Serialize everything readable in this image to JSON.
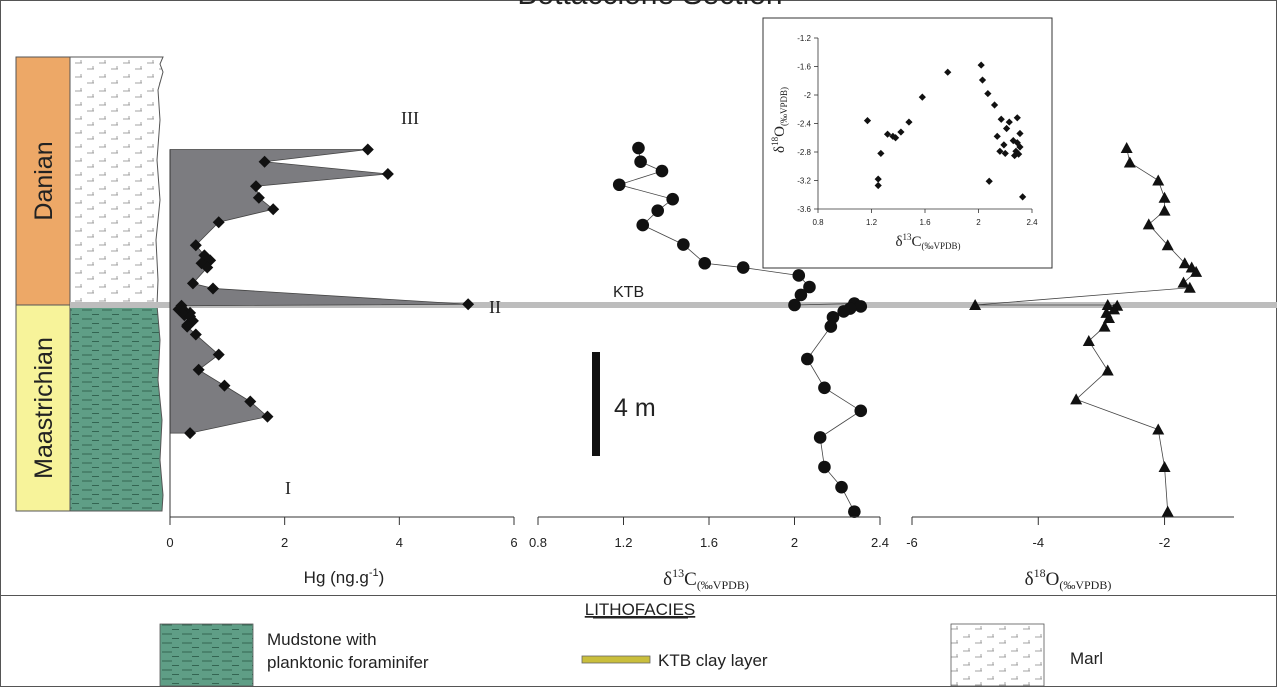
{
  "title": "Bottaccione Section",
  "stages": {
    "upper": "Danian",
    "lower": "Maastrichian"
  },
  "colors": {
    "danian": "#eda867",
    "maastrichian": "#f7f39a",
    "mudstone": "#5f9e86",
    "hg_fill": "#7c7c80",
    "ktb_line": "#bdbdbd",
    "ktb_clay": "#c9be3c"
  },
  "ktb_label": "KTB",
  "scale_bar": "4 m",
  "hg": {
    "xlabel": "Hg (ng.g",
    "xlabel_sup": "-1",
    "xlabel_end": ")",
    "ticks": [
      "0",
      "2",
      "4",
      "6"
    ],
    "peaks": [
      "I",
      "II",
      "III"
    ]
  },
  "d13c": {
    "xlabel_main": "δ",
    "xlabel_sup": "13",
    "xlabel_c": "C",
    "xlabel_sub": "(‰VPDB)",
    "ticks": [
      "0.8",
      "1.2",
      "1.6",
      "2",
      "2.4"
    ]
  },
  "d18o": {
    "xlabel_main": "δ",
    "xlabel_sup": "18",
    "xlabel_c": "O",
    "xlabel_sub": "(‰VPDB)",
    "ticks": [
      "-6",
      "-4",
      "-2"
    ]
  },
  "inset": {
    "xticks": [
      "0.8",
      "1.2",
      "1.6",
      "2",
      "2.4"
    ],
    "yticks": [
      "-1.2",
      "-1.6",
      "-2",
      "-2.4",
      "-2.8",
      "-3.2",
      "-3.6"
    ],
    "xlabel_main": "δ",
    "xlabel_sup": "13",
    "xlabel_c": "C",
    "xlabel_sub": "(‰VPDB)",
    "ylabel_main": "δ",
    "ylabel_sup": "18",
    "ylabel_c": "O",
    "ylabel_sub": "(‰VPDB)"
  },
  "legend": {
    "title": "LITHOFACIES",
    "mudstone_line1": "Mudstone with",
    "mudstone_line2": "planktonic foraminifer",
    "ktb_clay": "KTB clay layer",
    "marl": "Marl"
  },
  "chart_data": [
    {
      "type": "area",
      "name": "Hg",
      "x_axis": "Hg (ng.g-1)",
      "xlim": [
        0,
        6
      ],
      "y_unit": "relative stratigraphic position (m, KTB = 0)",
      "points": [
        {
          "y": 10.8,
          "x": 3.45
        },
        {
          "y": 9.95,
          "x": 1.65
        },
        {
          "y": 9.1,
          "x": 3.8
        },
        {
          "y": 8.25,
          "x": 1.5
        },
        {
          "y": 7.45,
          "x": 1.55
        },
        {
          "y": 6.65,
          "x": 1.8
        },
        {
          "y": 5.75,
          "x": 0.85
        },
        {
          "y": 4.15,
          "x": 0.45
        },
        {
          "y": 3.45,
          "x": 0.6
        },
        {
          "y": 3.1,
          "x": 0.7
        },
        {
          "y": 2.9,
          "x": 0.55
        },
        {
          "y": 2.6,
          "x": 0.65
        },
        {
          "y": 1.5,
          "x": 0.4
        },
        {
          "y": 1.15,
          "x": 0.75
        },
        {
          "y": 0.05,
          "x": 5.2
        },
        {
          "y": -0.05,
          "x": 0.2
        },
        {
          "y": -0.3,
          "x": 0.15
        },
        {
          "y": -0.4,
          "x": 0.25
        },
        {
          "y": -0.55,
          "x": 0.35
        },
        {
          "y": -0.7,
          "x": 0.25
        },
        {
          "y": -0.8,
          "x": 0.35
        },
        {
          "y": -1.1,
          "x": 0.4
        },
        {
          "y": -1.4,
          "x": 0.3
        },
        {
          "y": -1.5,
          "x": 0.3
        },
        {
          "y": -2.05,
          "x": 0.45
        },
        {
          "y": -3.45,
          "x": 0.85
        },
        {
          "y": -4.5,
          "x": 0.5
        },
        {
          "y": -5.6,
          "x": 0.95
        },
        {
          "y": -6.7,
          "x": 1.4
        },
        {
          "y": -7.75,
          "x": 1.7
        },
        {
          "y": -8.9,
          "x": 0.35
        }
      ]
    },
    {
      "type": "line",
      "name": "δ13C",
      "x_axis": "δ13C (‰VPDB)",
      "xlim": [
        0.8,
        2.4
      ],
      "points": [
        {
          "y": 10.9,
          "x": 1.27
        },
        {
          "y": 9.95,
          "x": 1.28
        },
        {
          "y": 9.3,
          "x": 1.38
        },
        {
          "y": 8.35,
          "x": 1.18
        },
        {
          "y": 7.35,
          "x": 1.43
        },
        {
          "y": 6.55,
          "x": 1.36
        },
        {
          "y": 5.55,
          "x": 1.29
        },
        {
          "y": 4.2,
          "x": 1.48
        },
        {
          "y": 2.9,
          "x": 1.58
        },
        {
          "y": 2.6,
          "x": 1.76
        },
        {
          "y": 2.05,
          "x": 2.02
        },
        {
          "y": 1.25,
          "x": 2.07
        },
        {
          "y": 0.7,
          "x": 2.03
        },
        {
          "y": 0.0,
          "x": 2.0
        },
        {
          "y": 0.1,
          "x": 2.28
        },
        {
          "y": -0.1,
          "x": 2.31
        },
        {
          "y": -0.25,
          "x": 2.26
        },
        {
          "y": -0.45,
          "x": 2.23
        },
        {
          "y": -0.85,
          "x": 2.18
        },
        {
          "y": -1.5,
          "x": 2.17
        },
        {
          "y": -3.75,
          "x": 2.06
        },
        {
          "y": -5.75,
          "x": 2.14
        },
        {
          "y": -7.35,
          "x": 2.31
        },
        {
          "y": -9.2,
          "x": 2.12
        },
        {
          "y": -11.25,
          "x": 2.14
        },
        {
          "y": -12.65,
          "x": 2.22
        },
        {
          "y": -14.35,
          "x": 2.28
        }
      ]
    },
    {
      "type": "line",
      "name": "δ18O",
      "x_axis": "δ18O (‰VPDB)",
      "xlim": [
        -6,
        -0.9
      ],
      "points": [
        {
          "y": 10.9,
          "x": -2.6
        },
        {
          "y": 9.9,
          "x": -2.55
        },
        {
          "y": 8.65,
          "x": -2.1
        },
        {
          "y": 7.45,
          "x": -2.0
        },
        {
          "y": 6.55,
          "x": -2.0
        },
        {
          "y": 5.6,
          "x": -2.25
        },
        {
          "y": 4.15,
          "x": -1.95
        },
        {
          "y": 2.9,
          "x": -1.68
        },
        {
          "y": 2.6,
          "x": -1.57
        },
        {
          "y": 2.3,
          "x": -1.5
        },
        {
          "y": 1.55,
          "x": -1.7
        },
        {
          "y": 1.2,
          "x": -1.6
        },
        {
          "y": 0.0,
          "x": -5.0
        },
        {
          "y": 0.0,
          "x": -2.9
        },
        {
          "y": -0.05,
          "x": -2.75
        },
        {
          "y": -0.3,
          "x": -2.8
        },
        {
          "y": -0.55,
          "x": -2.92
        },
        {
          "y": -0.9,
          "x": -2.88
        },
        {
          "y": -1.5,
          "x": -2.95
        },
        {
          "y": -2.5,
          "x": -3.2
        },
        {
          "y": -4.55,
          "x": -2.9
        },
        {
          "y": -6.55,
          "x": -3.4
        },
        {
          "y": -8.65,
          "x": -2.1
        },
        {
          "y": -11.25,
          "x": -2.0
        },
        {
          "y": -14.35,
          "x": -1.95
        }
      ]
    },
    {
      "type": "scatter",
      "name": "δ18O vs δ13C",
      "x_axis": "δ13C (‰VPDB)",
      "y_axis": "δ18O (‰VPDB)",
      "xlim": [
        0.8,
        2.4
      ],
      "ylim": [
        -3.6,
        -1.2
      ],
      "points": [
        {
          "x": 1.17,
          "y": -2.36
        },
        {
          "x": 1.27,
          "y": -2.82
        },
        {
          "x": 1.25,
          "y": -3.18
        },
        {
          "x": 1.25,
          "y": -3.27
        },
        {
          "x": 1.32,
          "y": -2.55
        },
        {
          "x": 1.36,
          "y": -2.58
        },
        {
          "x": 1.38,
          "y": -2.6
        },
        {
          "x": 1.42,
          "y": -2.52
        },
        {
          "x": 1.48,
          "y": -2.38
        },
        {
          "x": 1.58,
          "y": -2.03
        },
        {
          "x": 1.77,
          "y": -1.68
        },
        {
          "x": 2.02,
          "y": -1.58
        },
        {
          "x": 2.03,
          "y": -1.79
        },
        {
          "x": 2.07,
          "y": -1.98
        },
        {
          "x": 2.08,
          "y": -3.21
        },
        {
          "x": 2.12,
          "y": -2.14
        },
        {
          "x": 2.17,
          "y": -2.34
        },
        {
          "x": 2.14,
          "y": -2.58
        },
        {
          "x": 2.16,
          "y": -2.79
        },
        {
          "x": 2.19,
          "y": -2.7
        },
        {
          "x": 2.2,
          "y": -2.82
        },
        {
          "x": 2.21,
          "y": -2.47
        },
        {
          "x": 2.23,
          "y": -2.38
        },
        {
          "x": 2.26,
          "y": -2.64
        },
        {
          "x": 2.27,
          "y": -2.85
        },
        {
          "x": 2.28,
          "y": -2.79
        },
        {
          "x": 2.29,
          "y": -2.32
        },
        {
          "x": 2.29,
          "y": -2.67
        },
        {
          "x": 2.3,
          "y": -2.83
        },
        {
          "x": 2.31,
          "y": -2.54
        },
        {
          "x": 2.31,
          "y": -2.73
        },
        {
          "x": 2.33,
          "y": -3.43
        }
      ]
    }
  ]
}
